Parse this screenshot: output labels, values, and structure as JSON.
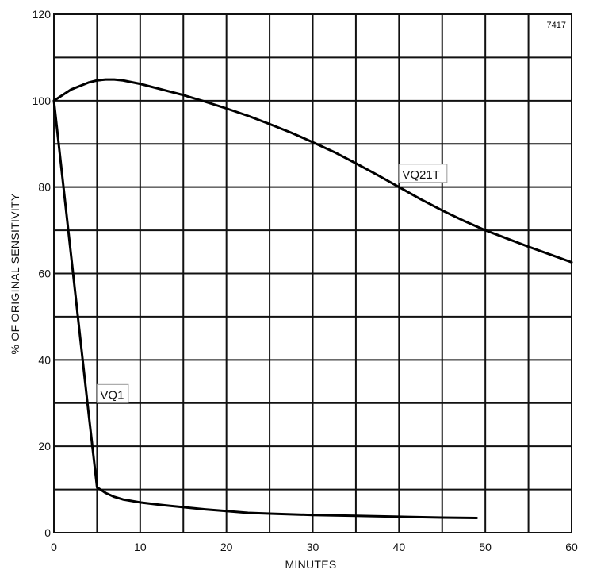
{
  "chart_data": {
    "type": "line",
    "title": "",
    "figure_code": "7417",
    "xlabel": "MINUTES",
    "ylabel": "% OF ORIGINAL SENSITIVITY",
    "xlim": [
      0,
      60
    ],
    "ylim": [
      0,
      120
    ],
    "x_ticks": [
      0,
      10,
      20,
      30,
      40,
      50,
      60
    ],
    "y_ticks": [
      0,
      20,
      40,
      60,
      80,
      100,
      120
    ],
    "x_grid_step": 5,
    "y_grid_step": 10,
    "grid": true,
    "legend": "inline labels",
    "series": [
      {
        "name": "VQ21T",
        "label_anchor": [
          40,
          82
        ],
        "x": [
          0,
          2,
          4,
          5,
          6,
          7,
          8,
          10,
          12.5,
          15,
          17.5,
          20,
          22.5,
          25,
          27.5,
          30,
          32.5,
          35,
          37.5,
          40,
          42.5,
          45,
          47.5,
          50,
          52.5,
          55,
          57.5,
          60
        ],
        "y": [
          100,
          102.6,
          104.2,
          104.7,
          104.9,
          104.9,
          104.7,
          103.9,
          102.6,
          101.3,
          99.8,
          98.2,
          96.5,
          94.6,
          92.6,
          90.4,
          88.1,
          85.5,
          82.8,
          80.0,
          77.2,
          74.6,
          72.2,
          70.0,
          68.1,
          66.2,
          64.4,
          62.6
        ]
      },
      {
        "name": "VQ1",
        "label_anchor": [
          5,
          31
        ],
        "x": [
          0,
          1,
          2,
          3,
          4,
          5,
          6,
          7,
          8,
          10,
          12.5,
          15,
          17.5,
          20,
          22.5,
          25,
          30,
          35,
          40,
          45,
          49
        ],
        "y": [
          100,
          82,
          64,
          46,
          28,
          10.5,
          9.2,
          8.3,
          7.7,
          7.0,
          6.4,
          5.9,
          5.4,
          5.0,
          4.6,
          4.4,
          4.1,
          3.9,
          3.7,
          3.5,
          3.4
        ]
      }
    ]
  }
}
